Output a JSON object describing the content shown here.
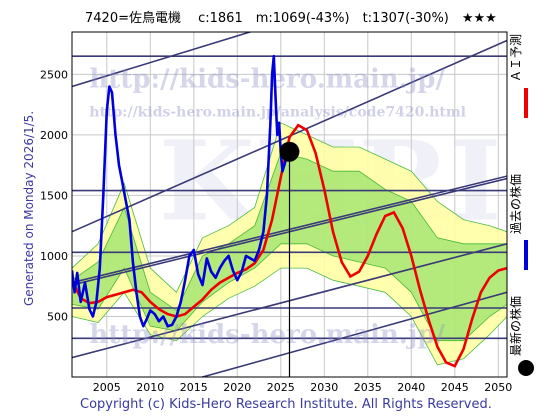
{
  "header": {
    "title": "7420=佐鳥電機　 c:1861　m:1069(-43%)　t:1307(-30%)　★★★"
  },
  "side_label": "Generated on Monday 2026/1/5.",
  "footer": "Copyright (c) Kids-Hero Research Institute. All Rights Reserved.",
  "watermark": {
    "url": "http://kids-hero.main.jp/",
    "analysis_url": "http://kids-hero.main.jp/analysis/code7420.html",
    "logo": "KHRI",
    "bottom": "http://kids-hero.main.jp/"
  },
  "legend": [
    {
      "label": "ＡＩ予測",
      "color": "#ee0000",
      "marker": "line"
    },
    {
      "label": "過去の株価",
      "color": "#0000dd",
      "marker": "line"
    },
    {
      "label": "最新の株価",
      "color": "#000000",
      "marker": "dot"
    }
  ],
  "colors": {
    "background": "#ffffff",
    "plot_bg": "#ffffff",
    "grid": "#c8c8c8",
    "frame": "#000000",
    "trend_lines": "#3a3a78",
    "band_outer": "#ffffa0",
    "band_inner": "#9be26a",
    "band_lines": "#22aa22",
    "past_price": "#0000dd",
    "ai_forecast": "#ee0000",
    "latest_point": "#000000"
  },
  "chart_data": {
    "type": "line",
    "xlim": [
      2001,
      2051
    ],
    "ylim": [
      0,
      2850
    ],
    "xticks": [
      2005,
      2010,
      2015,
      2020,
      2025,
      2030,
      2035,
      2040,
      2045,
      2050
    ],
    "yticks": [
      500,
      1000,
      1500,
      2000,
      2500
    ],
    "grid": true,
    "legend_position": "right-outside",
    "series": [
      {
        "name": "過去の株価",
        "x": [
          2001,
          2001.3,
          2001.6,
          2002,
          2002.5,
          2003,
          2003.4,
          2003.8,
          2004.2,
          2004.6,
          2005,
          2005.3,
          2005.6,
          2006,
          2006.4,
          2006.8,
          2007.2,
          2007.6,
          2008,
          2008.4,
          2008.8,
          2009.2,
          2009.6,
          2010,
          2010.5,
          2011,
          2011.5,
          2012,
          2012.5,
          2013,
          2013.5,
          2014,
          2014.5,
          2015,
          2015.5,
          2016,
          2016.5,
          2017,
          2017.5,
          2018,
          2018.5,
          2019,
          2019.5,
          2020,
          2020.5,
          2021,
          2021.5,
          2022,
          2022.5,
          2023,
          2023.4,
          2023.8,
          2024,
          2024.2,
          2024.4,
          2024.6,
          2024.8,
          2025,
          2025.2,
          2025.4,
          2025.6,
          2025.8,
          2026
        ],
        "values": [
          880,
          700,
          860,
          620,
          780,
          560,
          500,
          620,
          900,
          1500,
          2200,
          2400,
          2350,
          2000,
          1750,
          1600,
          1450,
          1300,
          950,
          700,
          500,
          420,
          480,
          550,
          520,
          460,
          500,
          420,
          430,
          500,
          620,
          800,
          1000,
          1050,
          850,
          760,
          980,
          870,
          820,
          900,
          960,
          1000,
          880,
          800,
          870,
          1000,
          980,
          960,
          1050,
          1200,
          1500,
          2100,
          2500,
          2650,
          2300,
          2000,
          2100,
          1850,
          1700,
          1750,
          1800,
          1850,
          1861
        ]
      },
      {
        "name": "ＡＩ予測",
        "x": [
          2001,
          2002,
          2003,
          2004,
          2005,
          2006,
          2007,
          2008,
          2009,
          2010,
          2011,
          2012,
          2013,
          2014,
          2015,
          2016,
          2017,
          2018,
          2019,
          2020,
          2021,
          2022,
          2023,
          2024,
          2025,
          2026,
          2027,
          2028,
          2029,
          2030,
          2031,
          2032,
          2033,
          2034,
          2035,
          2036,
          2037,
          2038,
          2039,
          2040,
          2041,
          2042,
          2043,
          2044,
          2045,
          2046,
          2047,
          2048,
          2049,
          2050,
          2051
        ],
        "values": [
          800,
          650,
          610,
          620,
          660,
          680,
          700,
          720,
          700,
          620,
          560,
          520,
          500,
          520,
          580,
          640,
          720,
          780,
          820,
          860,
          890,
          940,
          1050,
          1300,
          1650,
          1980,
          2080,
          2040,
          1850,
          1550,
          1200,
          950,
          830,
          870,
          1000,
          1180,
          1330,
          1360,
          1230,
          1000,
          720,
          470,
          250,
          120,
          90,
          230,
          480,
          700,
          820,
          880,
          900
        ]
      },
      {
        "name": "最新の株価",
        "x": [
          2025.99
        ],
        "values": [
          1861
        ]
      }
    ],
    "band": {
      "x": [
        2001,
        2004,
        2007,
        2010,
        2013,
        2016,
        2019,
        2022,
        2025,
        2028,
        2031,
        2034,
        2037,
        2040,
        2043,
        2046,
        2049,
        2051
      ],
      "outer_upper": [
        900,
        1100,
        1600,
        900,
        700,
        1150,
        1250,
        1400,
        2100,
        2000,
        1900,
        1900,
        1800,
        1700,
        1450,
        1300,
        1250,
        1200
      ],
      "outer_lower": [
        500,
        450,
        700,
        350,
        300,
        500,
        650,
        750,
        900,
        900,
        800,
        750,
        700,
        500,
        100,
        150,
        350,
        500
      ],
      "inner_upper": [
        800,
        950,
        1400,
        700,
        550,
        1000,
        1100,
        1250,
        1850,
        1800,
        1700,
        1700,
        1550,
        1450,
        1150,
        1100,
        1100,
        1100
      ],
      "inner_lower": [
        600,
        560,
        900,
        420,
        380,
        620,
        780,
        900,
        1100,
        1100,
        1000,
        950,
        900,
        700,
        300,
        300,
        500,
        600
      ]
    },
    "trend_lines": [
      {
        "x": [
          2001,
          2051
        ],
        "values": [
          2400,
          3500
        ]
      },
      {
        "x": [
          2001,
          2051
        ],
        "values": [
          1200,
          2780
        ]
      },
      {
        "x": [
          2001,
          2051
        ],
        "values": [
          780,
          1660
        ]
      },
      {
        "x": [
          2001,
          2051
        ],
        "values": [
          760,
          1640
        ]
      },
      {
        "x": [
          2001,
          2051
        ],
        "values": [
          160,
          1100
        ]
      },
      {
        "x": [
          2001,
          2051
        ],
        "values": [
          -300,
          700
        ]
      }
    ],
    "h_lines": [
      2650,
      1540,
      1030,
      570,
      320
    ],
    "v_line_x": 2026
  }
}
